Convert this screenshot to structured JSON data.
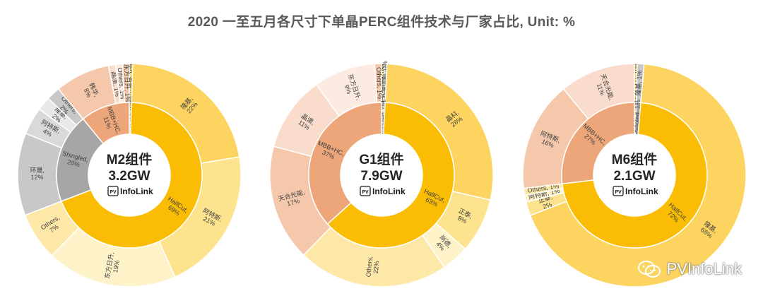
{
  "title": "2020 一至五月各尺寸下单晶PERC组件技术与厂家占比, Unit: %",
  "logo_text": "InfoLink",
  "logo_badge": "PV",
  "watermark": "PVInfoLink",
  "colors": {
    "HalfCut": "#fbbd04",
    "MBB+HC": "#eda67a",
    "Shingled": "#a6a6a6",
    "HD+1/3": "#f6dc7a",
    "outer_halfcut": [
      "#fcd45f",
      "#fde38e",
      "#fef2c9",
      "#fde8a8"
    ],
    "outer_mbb": [
      "#f5c8ab",
      "#f9dccb",
      "#fcebe1"
    ],
    "outer_shingled": [
      "#c8c8c8",
      "#d9d9d9",
      "#e8e8e8"
    ]
  },
  "chart_data": [
    {
      "type": "sunburst",
      "name": "M2组件",
      "total": "3.2GW",
      "inner": [
        {
          "label": "HD+1/3, 0%",
          "value": 0.5,
          "group": "HD+1/3"
        },
        {
          "label": "HalfCut, 69%",
          "value": 69,
          "group": "HalfCut"
        },
        {
          "label": "Shingled, 20%",
          "value": 20,
          "group": "Shingled"
        },
        {
          "label": "MBB+HC, 11%",
          "value": 11,
          "group": "MBB+HC"
        }
      ],
      "outer": [
        {
          "label": "鼎山海泰, 0%",
          "value": 0.5,
          "group": "HD+1/3"
        },
        {
          "label": "隆基, 22%",
          "value": 22,
          "group": "HalfCut"
        },
        {
          "label": "阿特斯, 21%",
          "value": 21,
          "group": "HalfCut"
        },
        {
          "label": "东方日升, 19%",
          "value": 19,
          "group": "HalfCut"
        },
        {
          "label": "Others, 7%",
          "value": 7,
          "group": "HalfCut"
        },
        {
          "label": "环晟, 12%",
          "value": 12,
          "group": "Shingled"
        },
        {
          "label": "阿特斯, 4%",
          "value": 4,
          "group": "Shingled"
        },
        {
          "label": "隆基, 2%",
          "value": 2,
          "group": "Shingled"
        },
        {
          "label": "Others, 2%",
          "value": 2,
          "group": "Shingled"
        },
        {
          "label": "韩华, 8%",
          "value": 8,
          "group": "MBB+HC"
        },
        {
          "label": "晶澳, 1%",
          "value": 1,
          "group": "MBB+HC"
        },
        {
          "label": "Others, 1%",
          "value": 1,
          "group": "MBB+HC"
        },
        {
          "label": "东方日升, 1%",
          "value": 1,
          "group": "MBB+HC"
        }
      ]
    },
    {
      "type": "sunburst",
      "name": "G1组件",
      "total": "7.9GW",
      "inner": [
        {
          "label": "HD+1/3, 0%",
          "value": 0.4,
          "group": "HD+1/3"
        },
        {
          "label": "Shingled, 0%",
          "value": 0.4,
          "group": "Shingled"
        },
        {
          "label": "HalfCut, 63%",
          "value": 63,
          "group": "HalfCut"
        },
        {
          "label": "MBB+HC, 37%",
          "value": 37,
          "group": "MBB+HC"
        }
      ],
      "outer": [
        {
          "label": "鼎山海泰, 0%",
          "value": 0.4,
          "group": "HD+1/3"
        },
        {
          "label": "江苏隆信新, 0%",
          "value": 0.4,
          "group": "Shingled"
        },
        {
          "label": "晶科, 28%",
          "value": 28,
          "group": "HalfCut"
        },
        {
          "label": "正泰, 8%",
          "value": 8,
          "group": "HalfCut"
        },
        {
          "label": "尚德, 4%",
          "value": 4,
          "group": "HalfCut"
        },
        {
          "label": "Others, 22%",
          "value": 22,
          "group": "HalfCut"
        },
        {
          "label": "天合光能, 17%",
          "value": 17,
          "group": "MBB+HC"
        },
        {
          "label": "晶澳, 11%",
          "value": 11,
          "group": "MBB+HC"
        },
        {
          "label": "东方日升, 9%",
          "value": 9,
          "group": "MBB+HC"
        },
        {
          "label": "Others, 1%",
          "value": 1,
          "group": "MBB+HC"
        }
      ]
    },
    {
      "type": "sunburst",
      "name": "M6组件",
      "total": "2.1GW",
      "inner": [
        {
          "label": "HD+1/3, 0%",
          "value": 0.4,
          "group": "HD+1/3"
        },
        {
          "label": "Shingled, 1%",
          "value": 1,
          "group": "Shingled"
        },
        {
          "label": "HalfCut, 72%",
          "value": 72,
          "group": "HalfCut"
        },
        {
          "label": "MBB+HC, 27%",
          "value": 27,
          "group": "MBB+HC"
        }
      ],
      "outer": [
        {
          "label": "东方日升, 0%",
          "value": 0.4,
          "group": "HD+1/3"
        },
        {
          "label": "隆基, 1%",
          "value": 1,
          "group": "Shingled"
        },
        {
          "label": "隆基, 68%",
          "value": 68,
          "group": "HalfCut"
        },
        {
          "label": "正泰, 2%",
          "value": 2,
          "group": "HalfCut"
        },
        {
          "label": "阿特斯, 1%",
          "value": 1,
          "group": "HalfCut"
        },
        {
          "label": "Others, 1%",
          "value": 1,
          "group": "HalfCut"
        },
        {
          "label": "阿特斯, 16%",
          "value": 16,
          "group": "MBB+HC"
        },
        {
          "label": "天合光能, 11%",
          "value": 11,
          "group": "MBB+HC"
        }
      ]
    }
  ]
}
